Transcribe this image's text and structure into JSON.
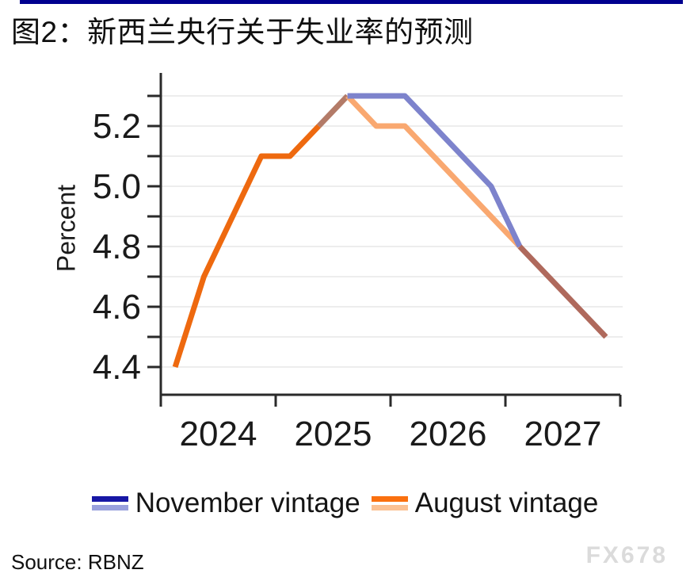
{
  "top_bar": {
    "color": "#00008f"
  },
  "title": "图2：新西兰央行关于失业率的预测",
  "chart_data": {
    "type": "line",
    "ylabel": "Percent",
    "grid": true,
    "grid_color": "#ededed",
    "axis_color": "#2a2a2a",
    "tick_label_color": "#1a1a1a",
    "ylim": [
      4.35,
      5.35
    ],
    "xlim_years": [
      2024,
      2028
    ],
    "yticks_all": [
      4.4,
      4.5,
      4.6,
      4.7,
      4.8,
      4.9,
      5.0,
      5.1,
      5.2,
      5.3
    ],
    "yticks_labeled": [
      {
        "label": "5.2",
        "value": 5.2
      },
      {
        "label": "5.0",
        "value": 5.0
      },
      {
        "label": "4.8",
        "value": 4.8
      },
      {
        "label": "4.6",
        "value": 4.6
      },
      {
        "label": "4.4",
        "value": 4.4
      }
    ],
    "x_tick_boundaries": [
      2024,
      2025,
      2026,
      2027,
      2028
    ],
    "x_ticks": [
      {
        "label": "2024",
        "center": 2024.5
      },
      {
        "label": "2025",
        "center": 2025.5
      },
      {
        "label": "2026",
        "center": 2026.5
      },
      {
        "label": "2027",
        "center": 2027.5
      }
    ],
    "series": [
      {
        "name": "November vintage",
        "color_history": "#1717a5",
        "color_forecast": "#7d83cc",
        "x": [
          2025.375,
          2025.625,
          2025.875,
          2026.125,
          2026.375,
          2026.625,
          2026.875,
          2027.125,
          2027.375,
          2027.625,
          2027.875
        ],
        "values": [
          5.2,
          5.3,
          5.3,
          5.3,
          5.2,
          5.1,
          5.0,
          4.8,
          4.7,
          4.6,
          4.5
        ]
      },
      {
        "name": "August vintage",
        "color_history": "#ee690f",
        "color_forecast": "#f9a870",
        "x": [
          2024.125,
          2024.375,
          2024.625,
          2024.875,
          2025.125,
          2025.375,
          2025.625,
          2025.875,
          2026.125,
          2026.375,
          2026.625,
          2026.875,
          2027.125,
          2027.375,
          2027.625,
          2027.875
        ],
        "values": [
          4.4,
          4.7,
          4.9,
          5.1,
          5.1,
          5.2,
          5.3,
          5.2,
          5.2,
          5.1,
          5.0,
          4.9,
          4.8,
          4.7,
          4.6,
          4.5
        ]
      }
    ],
    "render_segments": [
      {
        "name": "august-history",
        "color": "#ee690f",
        "points": [
          [
            2024.125,
            4.4
          ],
          [
            2024.375,
            4.7
          ],
          [
            2024.875,
            5.1
          ],
          [
            2025.125,
            5.1
          ],
          [
            2025.375,
            5.2
          ]
        ]
      },
      {
        "name": "overlap-rise",
        "color": "#b37b68",
        "points": [
          [
            2025.375,
            5.2
          ],
          [
            2025.625,
            5.3
          ]
        ]
      },
      {
        "name": "august-forecast",
        "color": "#f9a870",
        "points": [
          [
            2025.625,
            5.3
          ],
          [
            2025.875,
            5.2
          ],
          [
            2026.125,
            5.2
          ],
          [
            2027.125,
            4.8
          ]
        ]
      },
      {
        "name": "november-forecast",
        "color": "#7d83cc",
        "points": [
          [
            2025.625,
            5.3
          ],
          [
            2026.125,
            5.3
          ],
          [
            2026.875,
            5.0
          ],
          [
            2027.125,
            4.8
          ]
        ]
      },
      {
        "name": "overlap-tail",
        "color": "#af695c",
        "points": [
          [
            2027.125,
            4.8
          ],
          [
            2027.875,
            4.5
          ]
        ]
      }
    ]
  },
  "legend": {
    "items": [
      {
        "label": "November vintage",
        "swatch_colors": [
          "#1717a5",
          "#99a0dd"
        ]
      },
      {
        "label": "August vintage",
        "swatch_colors": [
          "#fa700f",
          "#fbc193"
        ]
      }
    ]
  },
  "source": "Source: RBNZ",
  "watermark": "FX678"
}
